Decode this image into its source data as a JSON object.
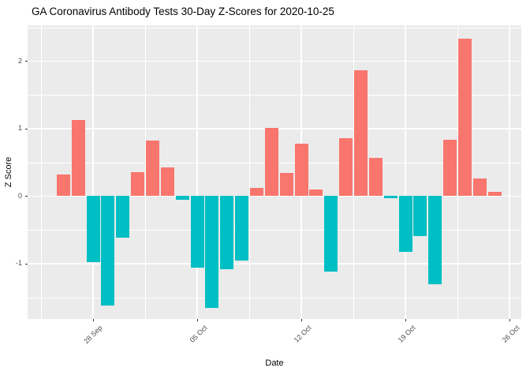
{
  "title": "GA Coronavirus Antibody Tests 30-Day Z-Scores for 2020-10-25",
  "chart_data": {
    "type": "bar",
    "title": "GA Coronavirus Antibody Tests 30-Day Z-Scores for 2020-10-25",
    "xlabel": "Date",
    "ylabel": "Z Score",
    "x": [
      "2020-09-26",
      "2020-09-27",
      "2020-09-28",
      "2020-09-29",
      "2020-09-30",
      "2020-10-01",
      "2020-10-02",
      "2020-10-03",
      "2020-10-04",
      "2020-10-05",
      "2020-10-06",
      "2020-10-07",
      "2020-10-08",
      "2020-10-09",
      "2020-10-10",
      "2020-10-11",
      "2020-10-12",
      "2020-10-13",
      "2020-10-14",
      "2020-10-15",
      "2020-10-16",
      "2020-10-17",
      "2020-10-18",
      "2020-10-19",
      "2020-10-20",
      "2020-10-21",
      "2020-10-22",
      "2020-10-23",
      "2020-10-24",
      "2020-10-25"
    ],
    "values": [
      0.32,
      1.13,
      -0.98,
      -1.62,
      -0.62,
      0.36,
      0.82,
      0.42,
      -0.06,
      -1.06,
      -1.66,
      -1.08,
      -0.96,
      0.12,
      1.01,
      0.34,
      0.78,
      0.1,
      -1.12,
      0.86,
      1.86,
      0.56,
      -0.03,
      -0.83,
      -0.59,
      -1.31,
      0.83,
      2.33,
      0.26,
      0.06
    ],
    "x_ticks": [
      {
        "label": "28 Sep",
        "date": "2020-09-28"
      },
      {
        "label": "05 Oct",
        "date": "2020-10-05"
      },
      {
        "label": "12 Oct",
        "date": "2020-10-12"
      },
      {
        "label": "19 Oct",
        "date": "2020-10-19"
      },
      {
        "label": "26 Oct",
        "date": "2020-10-26"
      }
    ],
    "y_ticks": [
      -1,
      0,
      1,
      2
    ],
    "ylim": [
      -1.82,
      2.53
    ],
    "grid": true,
    "legend": "none",
    "colors": {
      "positive": "#F8766D",
      "negative": "#00BFC4",
      "panel_bg": "#EBEBEB",
      "gridline": "#FFFFFF",
      "axis_text": "#4D4D4D",
      "tick_mark": "#333333",
      "title_text": "#000000"
    }
  }
}
